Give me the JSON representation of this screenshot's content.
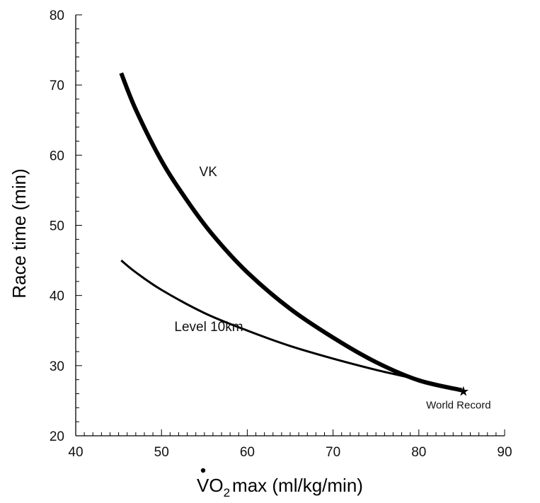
{
  "chart_data": {
    "type": "line",
    "title": "",
    "xlabel": {
      "prefix": "V",
      "subscript_text": "O",
      "subscript": "2",
      "suffix": "max (ml/kg/min)"
    },
    "ylabel": "Race time (min)",
    "xlim": [
      40,
      90
    ],
    "ylim": [
      20,
      80
    ],
    "x_ticks": [
      40,
      50,
      60,
      70,
      80,
      90
    ],
    "y_ticks": [
      20,
      30,
      40,
      50,
      60,
      70,
      80
    ],
    "x_minor_step": 1,
    "y_minor_step": 2,
    "grid": false,
    "series": [
      {
        "name": "VK",
        "line_weight": "heavy",
        "x": [
          45.3,
          47,
          50,
          53,
          56,
          60,
          65,
          70,
          75,
          80,
          85
        ],
        "y": [
          71.7,
          66.5,
          59.2,
          53.5,
          48.6,
          43.3,
          38.1,
          34.0,
          30.5,
          27.9,
          26.5
        ]
      },
      {
        "name": "Level 10km",
        "line_weight": "normal",
        "x": [
          45.3,
          47,
          50,
          55,
          60,
          65,
          70,
          75,
          80,
          85
        ],
        "y": [
          45.0,
          43.3,
          40.8,
          37.5,
          35.0,
          32.8,
          31.0,
          29.4,
          28.0,
          26.5
        ]
      }
    ],
    "series_label_positions": [
      {
        "text": "VK",
        "x": 54.4,
        "y": 57.0
      },
      {
        "text": "Level 10km",
        "x": 51.5,
        "y": 34.9
      }
    ],
    "annotations": [
      {
        "text": "World Record",
        "marker": "★",
        "x": 85.2,
        "y": 26.4
      }
    ]
  }
}
